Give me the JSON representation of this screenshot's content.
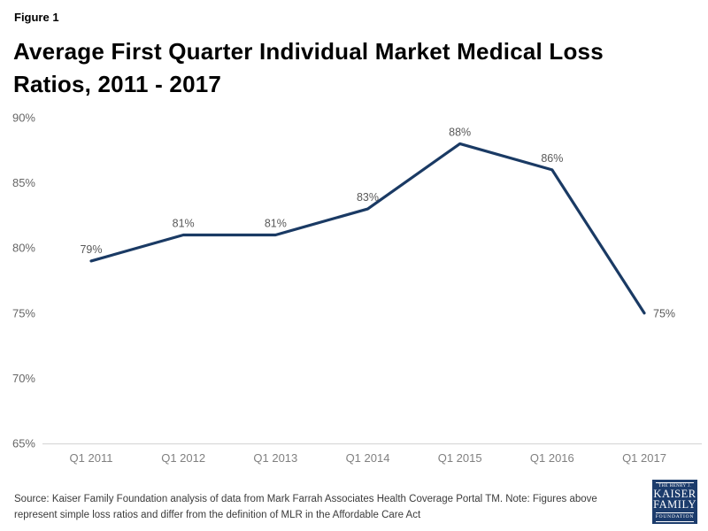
{
  "header": {
    "figure_label": "Figure 1",
    "title": "Average First Quarter Individual Market Medical Loss Ratios, 2011 - 2017"
  },
  "chart_data": {
    "type": "line",
    "title": "Average First Quarter Individual Market Medical Loss Ratios, 2011 - 2017",
    "categories": [
      "Q1 2011",
      "Q1 2012",
      "Q1 2013",
      "Q1 2014",
      "Q1 2015",
      "Q1 2016",
      "Q1 2017"
    ],
    "values": [
      79,
      81,
      81,
      83,
      88,
      86,
      75
    ],
    "point_labels": [
      "79%",
      "81%",
      "81%",
      "83%",
      "88%",
      "86%",
      "75%"
    ],
    "xlabel": "",
    "ylabel": "",
    "ylim": [
      65,
      90
    ],
    "ytick_values": [
      65,
      70,
      75,
      80,
      85,
      90
    ],
    "ytick_labels": [
      "65%",
      "70%",
      "75%",
      "80%",
      "85%",
      "90%"
    ],
    "grid": false,
    "legend": "none",
    "line_color": "#1a3a64",
    "point_label_color": "#595959",
    "axis_line_color": "#d9d9d9",
    "ytick_color": "#666666",
    "xtick_color": "#808080"
  },
  "footer": {
    "source": "Source: Kaiser Family Foundation analysis of data from Mark Farrah Associates Health Coverage Portal TM. Note: Figures above represent simple loss ratios and differ from the definition of MLR in the Affordable Care Act",
    "logo": {
      "line1": "THE HENRY J.",
      "line2": "KAISER",
      "line3": "FAMILY",
      "line4": "FOUNDATION"
    }
  }
}
